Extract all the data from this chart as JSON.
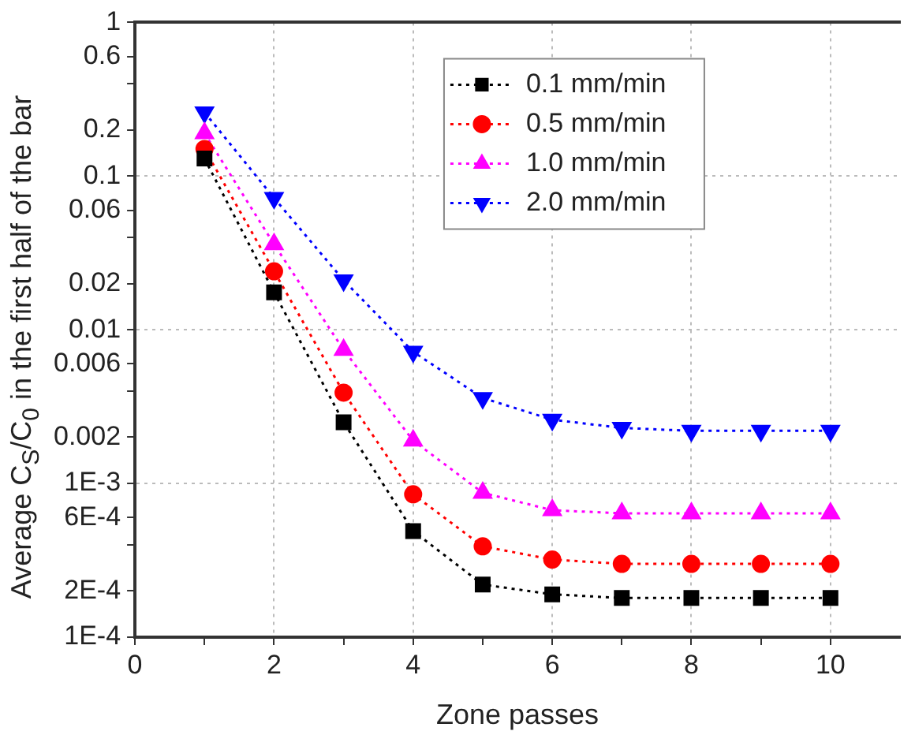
{
  "chart_data": {
    "type": "line",
    "xlabel": "Zone passes",
    "ylabel": "Average C$_{S}$/C$_{0}$ in the first half of the bar",
    "x": [
      1,
      2,
      3,
      4,
      5,
      6,
      7,
      8,
      9,
      10
    ],
    "series": [
      {
        "name": "0.1 mm/min",
        "color": "#000000",
        "marker": "square",
        "values": [
          0.13,
          0.0175,
          0.0025,
          0.00049,
          0.00022,
          0.00019,
          0.00018,
          0.00018,
          0.00018,
          0.00018
        ]
      },
      {
        "name": "0.5 mm/min",
        "color": "#ff0000",
        "marker": "circle",
        "values": [
          0.15,
          0.024,
          0.0039,
          0.00085,
          0.00039,
          0.00032,
          0.0003,
          0.0003,
          0.0003,
          0.0003
        ]
      },
      {
        "name": "1.0 mm/min",
        "color": "#ff00ff",
        "marker": "triangle",
        "values": [
          0.19,
          0.036,
          0.0074,
          0.0019,
          0.00087,
          0.00067,
          0.00064,
          0.00064,
          0.00064,
          0.00064
        ]
      },
      {
        "name": "2.0 mm/min",
        "color": "#0000ff",
        "marker": "triangle-down",
        "values": [
          0.26,
          0.072,
          0.021,
          0.0072,
          0.0036,
          0.0026,
          0.0023,
          0.0022,
          0.0022,
          0.0022
        ]
      }
    ],
    "log": "y",
    "xlim": [
      0,
      11
    ],
    "xticks": [
      0,
      {
        "value": 1,
        "label": null
      },
      2,
      {
        "value": 3,
        "label": null
      },
      4,
      {
        "value": 5,
        "label": null
      },
      6,
      {
        "value": 7,
        "label": null
      },
      8,
      {
        "value": 9,
        "label": null
      },
      10
    ],
    "ylim": [
      0.0001,
      1
    ],
    "yticks": [
      {
        "value": 0.0001,
        "label": "1E-4"
      },
      {
        "value": 0.0002,
        "label": "2E-4"
      },
      {
        "value": 0.0004,
        "label": null
      },
      {
        "value": 0.0006,
        "label": "6E-4"
      },
      {
        "value": 0.001,
        "label": "1E-3"
      },
      0.002,
      {
        "value": 0.004,
        "label": null
      },
      0.006,
      0.01,
      0.02,
      {
        "value": 0.04,
        "label": null
      },
      0.06,
      0.1,
      0.2,
      {
        "value": 0.4,
        "label": null
      },
      0.6,
      1
    ],
    "grid": true,
    "legend": "top right",
    "line_style": "dotted"
  }
}
